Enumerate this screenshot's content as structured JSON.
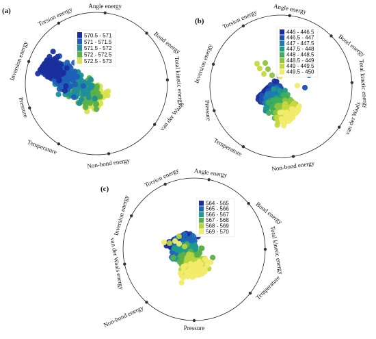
{
  "chart_data": [
    {
      "type": "radviz",
      "panel": "(a)",
      "anchors": [
        "Angle energy",
        "Bond energy",
        "Total kinetic energy",
        "van der Waals",
        "Non-bond energy",
        "Temperature",
        "Pressure",
        "Inversion energy",
        "Torsion energy"
      ],
      "legend": [
        {
          "range": "570.5 - 571",
          "color": "#1a2f9e"
        },
        {
          "range": "571 - 571.5",
          "color": "#1f5fb8"
        },
        {
          "range": "571.5 - 572",
          "color": "#1f8f9a"
        },
        {
          "range": "572 - 572.5",
          "color": "#5bb04a"
        },
        {
          "range": "572.5 - 573",
          "color": "#d9e24a"
        }
      ]
    },
    {
      "type": "radviz",
      "panel": "(b)",
      "anchors": [
        "Angle energy",
        "Bond energy",
        "Total kinetic energy",
        "van der Waals",
        "Non-bond energy",
        "Temperature",
        "Pressure",
        "Inversion energy",
        "Torsion energy"
      ],
      "legend": [
        {
          "range": "446 - 446.5",
          "color": "#1a2f9e"
        },
        {
          "range": "446.5 - 447",
          "color": "#1f4fb0"
        },
        {
          "range": "447 - 447.5",
          "color": "#1f7ab0"
        },
        {
          "range": "447.5 - 448",
          "color": "#1f9a8a"
        },
        {
          "range": "448 - 448.5",
          "color": "#3fae5a"
        },
        {
          "range": "448.5 - 449",
          "color": "#8cc43f"
        },
        {
          "range": "449 - 449.5",
          "color": "#c6d83e"
        },
        {
          "range": "449.5 - 450",
          "color": "#f1ec6a"
        }
      ]
    },
    {
      "type": "radviz",
      "panel": "(c)",
      "anchors": [
        "Angle energy",
        "Bond energy",
        "Total kinetic energy",
        "Temperature",
        "Pressure",
        "Non-bond energy",
        "van der Waals energy",
        "Inversion energy",
        "Torsion energy"
      ],
      "legend": [
        {
          "range": "564 - 565",
          "color": "#1a2f9e"
        },
        {
          "range": "565 - 566",
          "color": "#1f68b8"
        },
        {
          "range": "566 - 567",
          "color": "#1f9a8e"
        },
        {
          "range": "567 - 568",
          "color": "#5bb04a"
        },
        {
          "range": "568 - 569",
          "color": "#b8d43e"
        },
        {
          "range": "569 - 570",
          "color": "#f1ec6a"
        }
      ]
    }
  ]
}
